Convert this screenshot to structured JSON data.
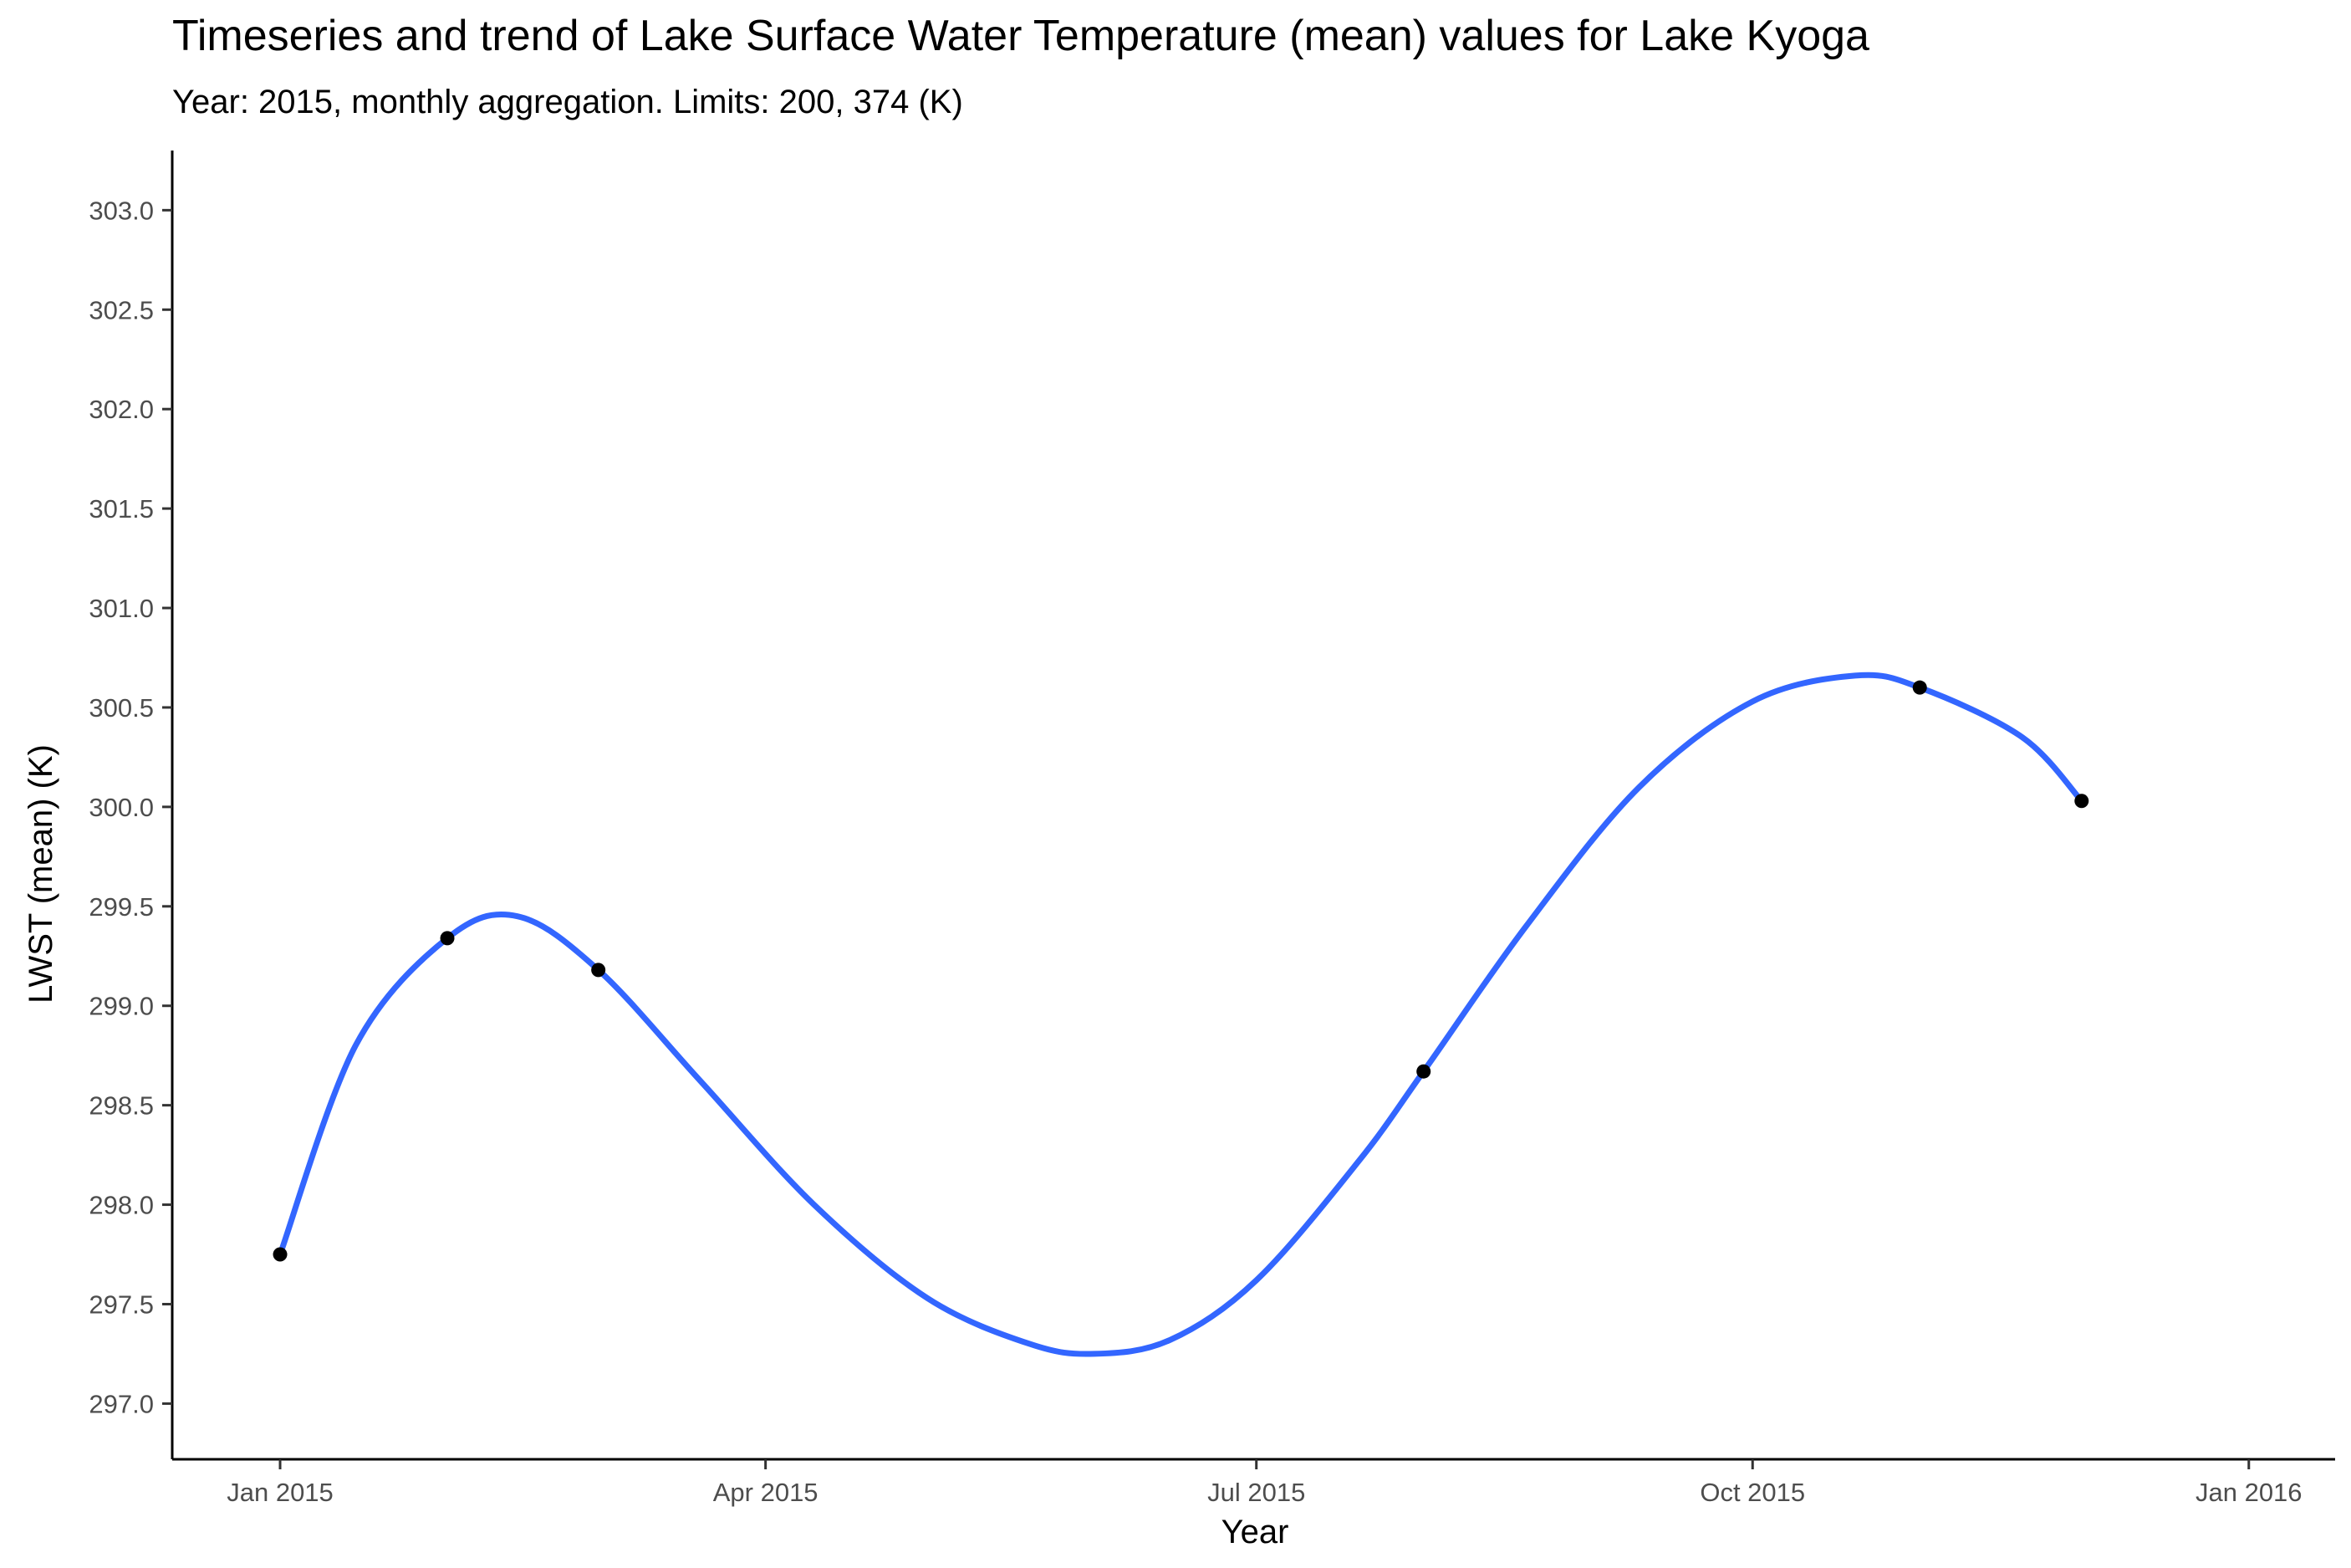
{
  "chart_data": {
    "type": "line",
    "title": "Timeseries and trend of Lake Surface Water Temperature (mean) values for Lake Kyoga",
    "subtitle": "Year: 2015, monthly aggregation. Limits: 200, 374 (K)",
    "xlabel": "Year",
    "ylabel": "LWST (mean) (K)",
    "ylim": [
      296.72,
      303.3
    ],
    "y_ticks": [
      297.0,
      297.5,
      298.0,
      298.5,
      299.0,
      299.5,
      300.0,
      300.5,
      301.0,
      301.5,
      302.0,
      302.5,
      303.0
    ],
    "y_tick_labels": [
      "297.0",
      "297.5",
      "298.0",
      "298.5",
      "299.0",
      "299.5",
      "300.0",
      "300.5",
      "301.0",
      "301.5",
      "302.0",
      "302.5",
      "303.0"
    ],
    "xlim": [
      "2014-12-12",
      "2016-01-17"
    ],
    "x_ticks": [
      "2015-01-01",
      "2015-04-01",
      "2015-07-01",
      "2015-10-01",
      "2016-01-01"
    ],
    "x_tick_labels": [
      "Jan 2015",
      "Apr 2015",
      "Jul 2015",
      "Oct 2015",
      "Jan 2016"
    ],
    "grid": false,
    "series": [
      {
        "name": "",
        "role": "points",
        "color": "#000000",
        "x": [
          "2015-01-01",
          "2015-02-01",
          "2015-03-01",
          "2015-08-01",
          "2015-11-01",
          "2015-12-01"
        ],
        "y": [
          297.75,
          299.34,
          299.18,
          298.67,
          300.6,
          300.03
        ]
      },
      {
        "name": "",
        "role": "trend",
        "color": "#3366FF",
        "x": [
          "2015-01-01",
          "2015-01-15",
          "2015-02-01",
          "2015-02-14",
          "2015-03-01",
          "2015-03-20",
          "2015-04-10",
          "2015-05-01",
          "2015-05-20",
          "2015-06-01",
          "2015-06-15",
          "2015-07-01",
          "2015-07-20",
          "2015-08-01",
          "2015-08-20",
          "2015-09-10",
          "2015-10-01",
          "2015-10-20",
          "2015-11-01",
          "2015-11-20",
          "2015-12-01"
        ],
        "y": [
          297.75,
          298.8,
          299.34,
          299.45,
          299.18,
          298.62,
          298.0,
          297.53,
          297.3,
          297.25,
          297.32,
          297.62,
          298.22,
          298.67,
          299.4,
          300.1,
          300.53,
          300.66,
          300.6,
          300.35,
          300.03
        ]
      }
    ]
  }
}
